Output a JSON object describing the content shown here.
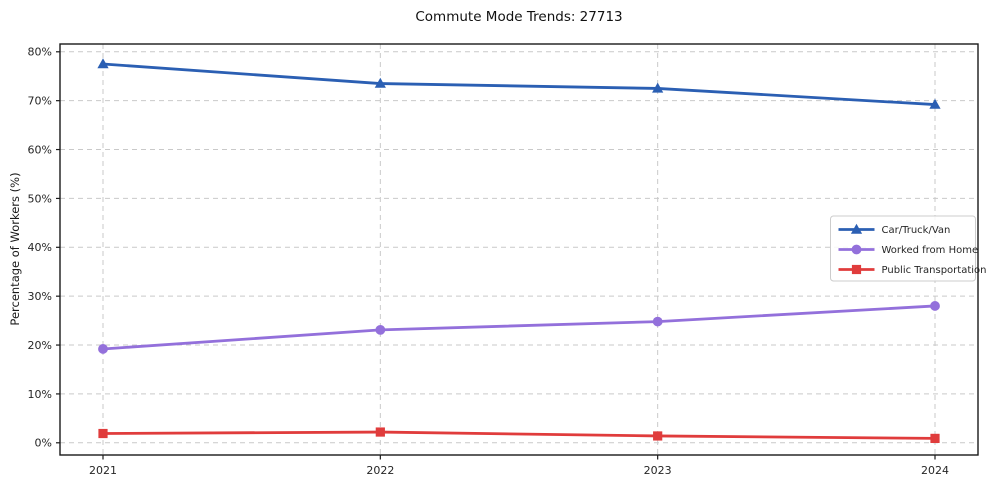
{
  "title": "Commute Mode Trends: 27713",
  "chart_data": {
    "type": "line",
    "title": "Commute Mode Trends: 27713",
    "xlabel": "",
    "ylabel": "Percentage of Workers (%)",
    "categories": [
      "2021",
      "2022",
      "2023",
      "2024"
    ],
    "series": [
      {
        "name": "Car/Truck/Van",
        "marker": "triangle-up",
        "color": "#2b5fb3",
        "values": [
          77.5,
          73.5,
          72.5,
          69.2
        ]
      },
      {
        "name": "Worked from Home",
        "marker": "circle",
        "color": "#9370db",
        "values": [
          19.2,
          23.1,
          24.8,
          28.0
        ]
      },
      {
        "name": "Public Transportation",
        "marker": "square",
        "color": "#e03c3c",
        "values": [
          1.9,
          2.2,
          1.4,
          0.9
        ]
      }
    ],
    "ylim": [
      0,
      80
    ],
    "ytick_step": 10,
    "ytick_suffix": "%",
    "grid": true,
    "grid_style": "dashed",
    "legend_position": "right-middle"
  },
  "colors": {
    "grid": "#c9c9c9",
    "spine": "#1a1a1a",
    "tick_label": "#262626",
    "legend_border": "#cccccc",
    "legend_bg": "#ffffff"
  }
}
